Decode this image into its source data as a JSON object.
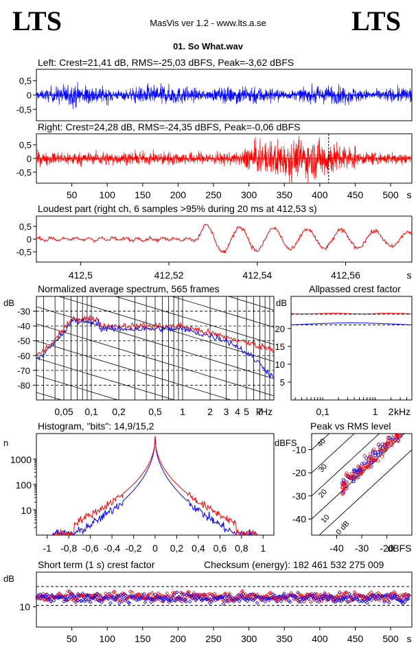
{
  "header": {
    "logo_left": "LTS",
    "logo_right": "LTS",
    "title": "MasVis ver 1.2 - www.lts.a.se"
  },
  "file_title": "01. So What.wav",
  "colors": {
    "left": "#0000ff",
    "right": "#ff0000",
    "axes": "#000000"
  },
  "chart_data": [
    {
      "id": "left",
      "type": "line",
      "title": "Left: Crest=21,41 dB, RMS=-25,03 dBFS, Peak=-3,62 dBFS",
      "ylim": [
        -0.9,
        0.9
      ],
      "yticks": [
        "0,5",
        "0",
        "-0,5"
      ],
      "xlim": [
        0,
        530
      ]
    },
    {
      "id": "right",
      "type": "line",
      "title": "Right: Crest=24,28 dB, RMS=-24,35 dBFS, Peak=-0,06 dBFS",
      "ylim": [
        -0.9,
        0.9
      ],
      "yticks": [
        "0,5",
        "0",
        "-0,5"
      ],
      "xlim": [
        0,
        530
      ],
      "xticks": [
        "50",
        "100",
        "150",
        "200",
        "250",
        "300",
        "350",
        "400",
        "450",
        "500"
      ],
      "xunit": "s",
      "loudest_marker_s": 412.53
    },
    {
      "id": "loudest",
      "type": "line",
      "title": "Loudest part (right ch, 6 samples >95% during 20 ms at 412,53 s)",
      "ylim": [
        -0.9,
        0.9
      ],
      "yticks": [
        "0,5",
        "0",
        "-0,5"
      ],
      "xticks": [
        "412,5",
        "412,52",
        "412,54",
        "412,56"
      ],
      "xunit": "s",
      "xlim": [
        412.49,
        412.575
      ]
    },
    {
      "id": "spectrum",
      "type": "line",
      "title": "Normalized average spectrum, 565 frames",
      "ylabel": "dB",
      "yticks": [
        "-30",
        "-40",
        "-50",
        "-60",
        "-70",
        "-80"
      ],
      "ylim": [
        -90,
        -20
      ],
      "xticks": [
        "0,05",
        "0,1",
        "0,2",
        "0,5",
        "1",
        "2",
        "3",
        "4",
        "5",
        "7"
      ],
      "xunit": "kHz",
      "xscale": "log"
    },
    {
      "id": "crest-allpass",
      "type": "line",
      "title": "Allpassed crest factor",
      "ylabel": "dB",
      "yticks": [
        "20",
        "15",
        "10",
        "5"
      ],
      "ylim": [
        0,
        29
      ],
      "xticks": [
        "0,1",
        "1",
        "2"
      ],
      "xunit": "kHz",
      "xscale": "log",
      "series": [
        {
          "values": [
            24,
            24,
            24,
            24
          ]
        },
        {
          "values": [
            21,
            21.5,
            21.2,
            21
          ]
        }
      ]
    },
    {
      "id": "histogram",
      "type": "line",
      "title": "Histogram, \"bits\": 14,9/15,2",
      "ylabel": "n",
      "yticks": [
        "1000",
        "100",
        "10"
      ],
      "yscale": "log",
      "xticks": [
        "-1",
        "-0,8",
        "-0,6",
        "-0,4",
        "-0,2",
        "0",
        "0,2",
        "0,4",
        "0,6",
        "0,8",
        "1"
      ],
      "xlim": [
        -1.1,
        1.1
      ]
    },
    {
      "id": "peak-rms",
      "type": "scatter",
      "title": "Peak vs RMS level",
      "ylabel": "dBFS",
      "yticks": [
        "-10",
        "-20",
        "-30",
        "-40"
      ],
      "ylim": [
        -47,
        -3
      ],
      "xticks": [
        "-40",
        "-30",
        "-20"
      ],
      "xunit": "dBFS",
      "xlim": [
        -50,
        -10
      ],
      "diag_labels": [
        "40",
        "30",
        "20",
        "10",
        "0 dB"
      ]
    },
    {
      "id": "short-crest",
      "type": "scatter",
      "title": "Short term (1 s) crest factor",
      "checksum": "Checksum (energy):   182 461 532 275 009",
      "ylabel": "dB",
      "yticks": [
        "10"
      ],
      "ylim": [
        3,
        22
      ],
      "xticks": [
        "50",
        "100",
        "150",
        "200",
        "250",
        "300",
        "350",
        "400",
        "450",
        "500"
      ],
      "xunit": "s",
      "xlim": [
        0,
        530
      ]
    }
  ]
}
